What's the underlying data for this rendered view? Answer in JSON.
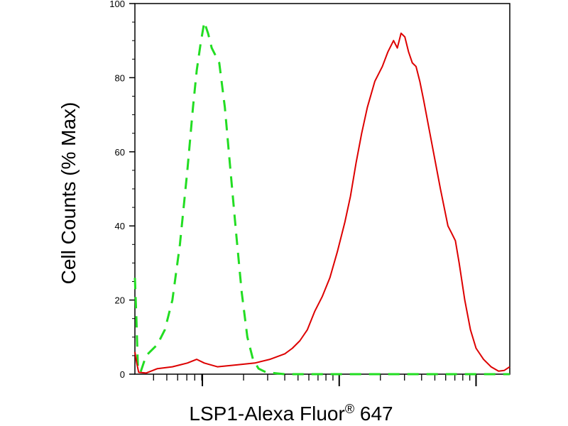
{
  "chart_data": {
    "type": "line",
    "title": "",
    "xlabel": "LSP1-Alexa Fluor",
    "xlabel_superscript": "®",
    "xlabel_suffix": " 647",
    "ylabel": "Cell Counts (% Max)",
    "xscale": "log",
    "xlim": [
      0,
      1
    ],
    "ylim": [
      0,
      100
    ],
    "y_ticks": [
      0,
      20,
      40,
      60,
      80,
      100
    ],
    "grid": false,
    "legend": "none",
    "series": [
      {
        "style": "dashed",
        "color": "#22dd22",
        "points": [
          [
            0.0,
            26
          ],
          [
            0.004,
            15
          ],
          [
            0.008,
            2
          ],
          [
            0.015,
            0.5
          ],
          [
            0.03,
            5
          ],
          [
            0.06,
            8
          ],
          [
            0.08,
            12
          ],
          [
            0.1,
            20
          ],
          [
            0.12,
            35
          ],
          [
            0.14,
            55
          ],
          [
            0.155,
            72
          ],
          [
            0.165,
            82
          ],
          [
            0.175,
            89
          ],
          [
            0.185,
            95
          ],
          [
            0.195,
            92
          ],
          [
            0.205,
            88
          ],
          [
            0.225,
            84
          ],
          [
            0.24,
            72
          ],
          [
            0.255,
            55
          ],
          [
            0.27,
            38
          ],
          [
            0.285,
            22
          ],
          [
            0.3,
            10
          ],
          [
            0.315,
            4
          ],
          [
            0.33,
            1.5
          ],
          [
            0.35,
            0.5
          ],
          [
            0.4,
            0
          ],
          [
            0.6,
            0
          ],
          [
            0.8,
            0
          ],
          [
            1.0,
            0
          ]
        ]
      },
      {
        "style": "solid",
        "color": "#dd0000",
        "points": [
          [
            0.0,
            6
          ],
          [
            0.005,
            3
          ],
          [
            0.01,
            0.5
          ],
          [
            0.03,
            0.3
          ],
          [
            0.06,
            1.5
          ],
          [
            0.1,
            2
          ],
          [
            0.14,
            3
          ],
          [
            0.165,
            4
          ],
          [
            0.185,
            3
          ],
          [
            0.22,
            2
          ],
          [
            0.27,
            2.5
          ],
          [
            0.32,
            3
          ],
          [
            0.36,
            4
          ],
          [
            0.4,
            5.5
          ],
          [
            0.42,
            7
          ],
          [
            0.44,
            9
          ],
          [
            0.46,
            12
          ],
          [
            0.48,
            17
          ],
          [
            0.5,
            21
          ],
          [
            0.52,
            26
          ],
          [
            0.54,
            33
          ],
          [
            0.56,
            41
          ],
          [
            0.575,
            48
          ],
          [
            0.59,
            57
          ],
          [
            0.605,
            65
          ],
          [
            0.62,
            72
          ],
          [
            0.64,
            79
          ],
          [
            0.66,
            83
          ],
          [
            0.675,
            87
          ],
          [
            0.69,
            90
          ],
          [
            0.7,
            88
          ],
          [
            0.71,
            92
          ],
          [
            0.72,
            91
          ],
          [
            0.73,
            87
          ],
          [
            0.74,
            84
          ],
          [
            0.75,
            83
          ],
          [
            0.76,
            79
          ],
          [
            0.77,
            74
          ],
          [
            0.785,
            66
          ],
          [
            0.8,
            58
          ],
          [
            0.815,
            50
          ],
          [
            0.825,
            45
          ],
          [
            0.835,
            40
          ],
          [
            0.845,
            38
          ],
          [
            0.855,
            36
          ],
          [
            0.865,
            30
          ],
          [
            0.88,
            20
          ],
          [
            0.895,
            12
          ],
          [
            0.91,
            7
          ],
          [
            0.93,
            4
          ],
          [
            0.95,
            2
          ],
          [
            0.97,
            0.8
          ],
          [
            0.985,
            1
          ],
          [
            1.0,
            2
          ]
        ]
      }
    ]
  }
}
